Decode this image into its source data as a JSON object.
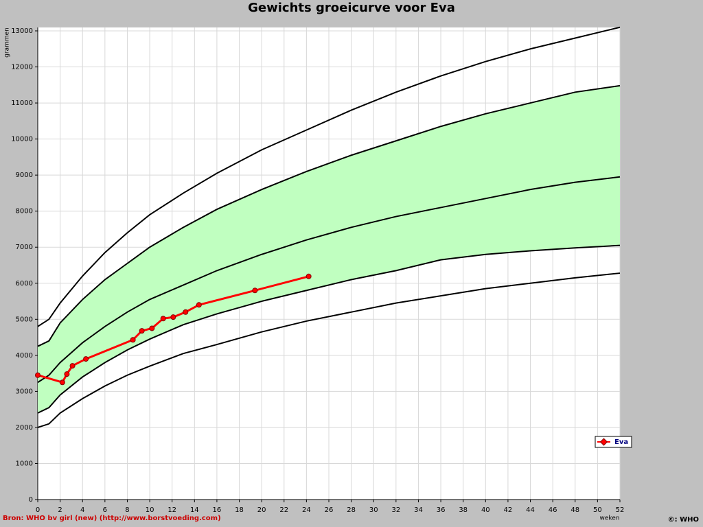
{
  "chart_data": {
    "type": "line",
    "title": "Gewichts groeicurve voor Eva",
    "y_label": "grammen",
    "x_label": "weken",
    "source": "Bron: WHO bv girl (new) (http://www.borstvoeding.com)",
    "copyright": "©: WHO",
    "xlim": [
      0,
      52
    ],
    "ylim": [
      0,
      13000
    ],
    "xticks": [
      0,
      2,
      4,
      6,
      8,
      10,
      12,
      14,
      16,
      18,
      20,
      22,
      24,
      26,
      28,
      30,
      32,
      34,
      36,
      38,
      40,
      42,
      44,
      46,
      48,
      50,
      52
    ],
    "yticks": [
      0,
      1000,
      2000,
      3000,
      4000,
      5000,
      6000,
      7000,
      8000,
      9000,
      10000,
      11000,
      12000,
      13000
    ],
    "grid": true,
    "legend": "right",
    "series": [
      {
        "name": "Eva",
        "color": "#ff0000",
        "x": [
          0,
          2.2,
          2.6,
          3.1,
          4.3,
          8.5,
          9.3,
          10.2,
          11.2,
          12.1,
          13.2,
          14.4,
          19.4,
          24.2
        ],
        "values": [
          3450,
          3250,
          3480,
          3710,
          3900,
          4430,
          4680,
          4750,
          5020,
          5060,
          5200,
          5400,
          5800,
          6190
        ]
      }
    ],
    "reference_curves": {
      "color": "#000000",
      "band_color": "#c0ffc0",
      "x": [
        0,
        1,
        2,
        4,
        6,
        8,
        10,
        13,
        16,
        20,
        24,
        28,
        32,
        36,
        40,
        44,
        48,
        52
      ],
      "curves": [
        {
          "values": [
            4800,
            5000,
            5450,
            6200,
            6850,
            7400,
            7900,
            8500,
            9050,
            9700,
            10250,
            10800,
            11300,
            11750,
            12150,
            12500,
            12800,
            13100
          ]
        },
        {
          "values": [
            4250,
            4400,
            4900,
            5550,
            6100,
            6550,
            7000,
            7550,
            8050,
            8600,
            9100,
            9550,
            9950,
            10350,
            10700,
            11000,
            11300,
            11480
          ]
        },
        {
          "values": [
            3250,
            3450,
            3800,
            4350,
            4800,
            5200,
            5550,
            5950,
            6350,
            6800,
            7200,
            7550,
            7850,
            8100,
            8350,
            8600,
            8800,
            8950
          ]
        },
        {
          "values": [
            2400,
            2550,
            2900,
            3400,
            3800,
            4150,
            4450,
            4850,
            5150,
            5500,
            5800,
            6100,
            6350,
            6650,
            6800,
            6900,
            6980,
            7050
          ]
        },
        {
          "values": [
            2000,
            2100,
            2400,
            2800,
            3150,
            3450,
            3700,
            4050,
            4300,
            4650,
            4950,
            5200,
            5450,
            5650,
            5850,
            6000,
            6150,
            6280
          ]
        }
      ]
    }
  }
}
